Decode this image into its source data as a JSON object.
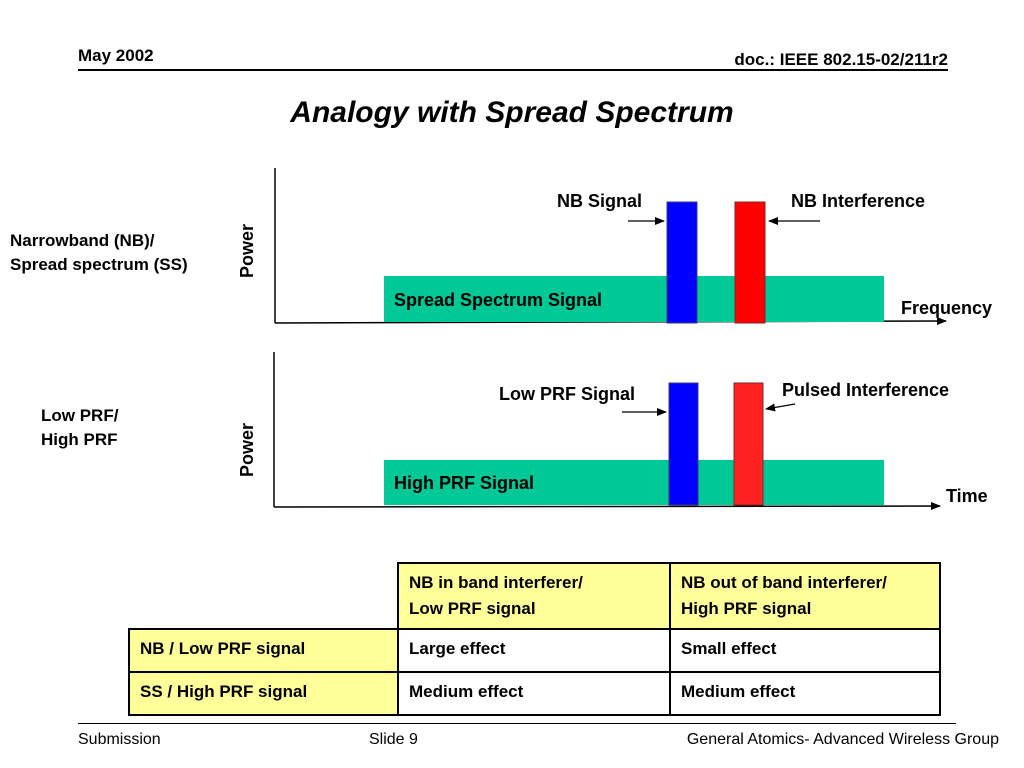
{
  "header": {
    "date": "May 2002",
    "doc": "doc.: IEEE 802.15-02/211r2"
  },
  "title": "Analogy with Spread Spectrum",
  "colors": {
    "spread_band": "#00c896",
    "signal_bar": "#0000ff",
    "interference_bar": "#ff0000",
    "table_highlight": "#ffff99"
  },
  "top_diagram": {
    "side_label_line1": "Narrowband (NB)/",
    "side_label_line2": "Spread spectrum (SS)",
    "y_axis": "Power",
    "x_axis": "Frequency",
    "band_label": "Spread Spectrum Signal",
    "signal_label": "NB Signal",
    "interference_label": "NB Interference"
  },
  "bottom_diagram": {
    "side_label_line1": "Low PRF/",
    "side_label_line2": "High PRF",
    "y_axis": "Power",
    "x_axis": "Time",
    "band_label": "High PRF Signal",
    "signal_label": "Low PRF Signal",
    "interference_label": "Pulsed Interference"
  },
  "table": {
    "col_headers": [
      {
        "line1": "NB in band interferer/",
        "line2": "Low PRF signal"
      },
      {
        "line1": "NB out of band interferer/",
        "line2": "High PRF signal"
      }
    ],
    "rows": [
      {
        "label": "NB / Low PRF signal",
        "cells": [
          "Large effect",
          "Small effect"
        ]
      },
      {
        "label": "SS / High PRF signal",
        "cells": [
          "Medium effect",
          "Medium effect"
        ]
      }
    ]
  },
  "footer": {
    "left": "Submission",
    "center": "Slide 9",
    "right": "General Atomics- Advanced Wireless Group"
  }
}
